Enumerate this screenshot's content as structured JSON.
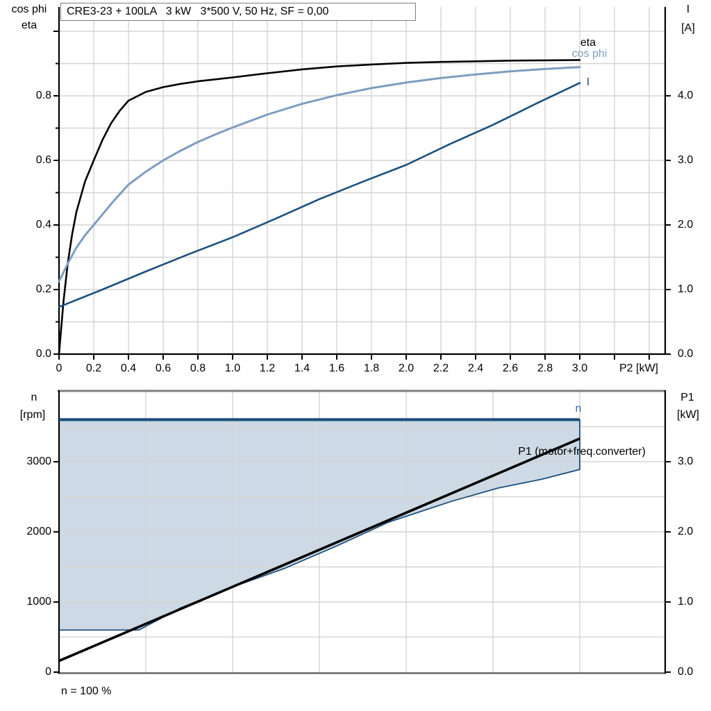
{
  "title": "CRE3-23 + 100LA   3 kW   3*500 V, 50 Hz, SF = 0,00",
  "colors": {
    "eta_line": "#000000",
    "cos_phi_line": "#7d9dc0",
    "current_line": "#1b4f7e",
    "speed_line": "#1b4f7e",
    "p1_line": "#000000",
    "envelope_fill": "#cdd9e4",
    "envelope_border": "#1b4f7e",
    "grid": "#d4d4d4",
    "axis": "#000000",
    "frame_gray": "#7f7f7f",
    "n_curve_label": "#2e6dae",
    "cos_phi_label": "#7d9dc0",
    "current_label": "#1b4f7e"
  },
  "chart_data": [
    {
      "type": "line",
      "name": "motor-performance-vs-shaft-power",
      "x_axis": {
        "label": "P2 [kW]",
        "min": 0,
        "max": 3.492,
        "major_tick_step": 0.2,
        "tick_values": [
          0,
          0.2,
          0.4,
          0.6,
          0.8,
          1.0,
          1.2,
          1.4,
          1.6,
          1.8,
          2.0,
          2.2,
          2.4,
          2.6,
          2.8,
          3.0
        ],
        "tick_labels": [
          "0",
          "0.2",
          "0.4",
          "0.6",
          "0.8",
          "1.0",
          "1.2",
          "1.4",
          "1.6",
          "1.8",
          "2.0",
          "2.2",
          "2.4",
          "2.6",
          "2.8",
          "3.0"
        ]
      },
      "y_axis_left": {
        "label_line1": "cos phi",
        "label_line2": "eta",
        "min": 0,
        "max": 1.0753,
        "minor_step": 0.1,
        "tick_values": [
          0,
          0.2,
          0.4,
          0.6,
          0.8
        ],
        "tick_labels": [
          "0.0",
          "0.2",
          "0.4",
          "0.6",
          "0.8"
        ]
      },
      "y_axis_right": {
        "label_line1": "I",
        "label_line2": "[A]",
        "min": 0,
        "max": 5.376,
        "tick_values": [
          0,
          1,
          2,
          3,
          4
        ],
        "tick_labels": [
          "0.0",
          "1.0",
          "2.0",
          "3.0",
          "4.0"
        ]
      },
      "grid": {
        "vertical_step": 0.2,
        "horizontal_step": 0.1
      },
      "series": [
        {
          "name": "eta",
          "label": "eta",
          "axis": "left",
          "points": [
            [
              0,
              0
            ],
            [
              0.025,
              0.16
            ],
            [
              0.05,
              0.28
            ],
            [
              0.075,
              0.37
            ],
            [
              0.1,
              0.44
            ],
            [
              0.15,
              0.535
            ],
            [
              0.2,
              0.6
            ],
            [
              0.25,
              0.663
            ],
            [
              0.3,
              0.715
            ],
            [
              0.35,
              0.754
            ],
            [
              0.4,
              0.785
            ],
            [
              0.5,
              0.812
            ],
            [
              0.6,
              0.827
            ],
            [
              0.7,
              0.837
            ],
            [
              0.8,
              0.845
            ],
            [
              0.9,
              0.851
            ],
            [
              1.0,
              0.857
            ],
            [
              1.2,
              0.87
            ],
            [
              1.4,
              0.882
            ],
            [
              1.6,
              0.891
            ],
            [
              1.8,
              0.897
            ],
            [
              2.0,
              0.902
            ],
            [
              2.2,
              0.905
            ],
            [
              2.4,
              0.907
            ],
            [
              2.6,
              0.909
            ],
            [
              2.8,
              0.91
            ],
            [
              3.0,
              0.911
            ]
          ]
        },
        {
          "name": "cos-phi",
          "label": "cos phi",
          "axis": "left",
          "points": [
            [
              0,
              0.225
            ],
            [
              0.05,
              0.28
            ],
            [
              0.1,
              0.33
            ],
            [
              0.15,
              0.368
            ],
            [
              0.2,
              0.4
            ],
            [
              0.3,
              0.465
            ],
            [
              0.4,
              0.525
            ],
            [
              0.5,
              0.565
            ],
            [
              0.6,
              0.6
            ],
            [
              0.7,
              0.63
            ],
            [
              0.8,
              0.657
            ],
            [
              0.9,
              0.68
            ],
            [
              1.0,
              0.702
            ],
            [
              1.2,
              0.742
            ],
            [
              1.4,
              0.775
            ],
            [
              1.6,
              0.802
            ],
            [
              1.8,
              0.824
            ],
            [
              2.0,
              0.841
            ],
            [
              2.2,
              0.855
            ],
            [
              2.4,
              0.866
            ],
            [
              2.6,
              0.876
            ],
            [
              2.8,
              0.883
            ],
            [
              3.0,
              0.889
            ]
          ]
        },
        {
          "name": "current",
          "label": "I",
          "axis": "right",
          "points": [
            [
              0,
              0.73
            ],
            [
              0.25,
              1.0
            ],
            [
              0.5,
              1.28
            ],
            [
              0.75,
              1.55
            ],
            [
              1.0,
              1.81
            ],
            [
              1.25,
              2.1
            ],
            [
              1.5,
              2.4
            ],
            [
              1.75,
              2.67
            ],
            [
              2.0,
              2.93
            ],
            [
              2.25,
              3.25
            ],
            [
              2.5,
              3.55
            ],
            [
              2.75,
              3.88
            ],
            [
              3.0,
              4.2
            ]
          ]
        }
      ]
    },
    {
      "type": "line",
      "name": "speed-and-input-power-vs-shaft-power",
      "footnote": "n = 100 %",
      "x_axis": {
        "label": "",
        "min": 0,
        "max": 3.492,
        "major_tick_step": 0.5,
        "tick_values": [],
        "tick_labels": []
      },
      "y_axis_left": {
        "label_line1": "n",
        "label_line2": "[rpm]",
        "min": 0,
        "max": 4010,
        "minor_step": 500,
        "tick_values": [
          0,
          1000,
          2000,
          3000
        ],
        "tick_labels": [
          "0",
          "1000",
          "2000",
          "3000"
        ]
      },
      "y_axis_right": {
        "label_line1": "P1",
        "label_line2": "[kW]",
        "min": 0,
        "max": 4.01,
        "tick_values": [
          0,
          1,
          2,
          3
        ],
        "tick_labels": [
          "0.0",
          "1.0",
          "2.0",
          "3.0"
        ]
      },
      "grid": {
        "vertical_step": 0.5,
        "horizontal_step": 500
      },
      "series": [
        {
          "name": "speed",
          "label": "n",
          "axis": "left",
          "speed_percent": 100,
          "points": [
            [
              0,
              3600
            ],
            [
              3.0,
              3600
            ]
          ]
        },
        {
          "name": "p1-input-power",
          "label": "P1 (motor+freq.converter)",
          "axis": "right",
          "points": [
            [
              0,
              0.16
            ],
            [
              3.0,
              3.33
            ]
          ]
        }
      ],
      "envelope": {
        "name": "speed-operating-range",
        "n_max_rpm": 3600,
        "n_min_rpm": 600,
        "lower_boundary_points": [
          [
            0,
            600
          ],
          [
            0.46,
            600
          ],
          [
            0.7,
            915
          ],
          [
            1.0,
            1215
          ],
          [
            1.3,
            1480
          ],
          [
            1.6,
            1800
          ],
          [
            1.9,
            2140
          ],
          [
            2.26,
            2435
          ],
          [
            2.53,
            2625
          ],
          [
            2.78,
            2750
          ],
          [
            3.0,
            2890
          ]
        ]
      }
    }
  ]
}
